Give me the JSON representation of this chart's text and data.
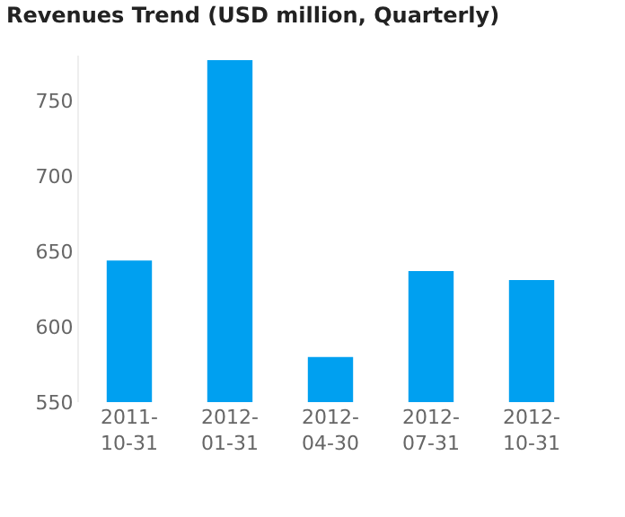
{
  "chart_data": {
    "type": "bar",
    "title": "Revenues Trend (USD million, Quarterly)",
    "categories": [
      "2011-10-31",
      "2012-01-31",
      "2012-04-30",
      "2012-07-31",
      "2012-10-31"
    ],
    "series": [
      {
        "color": "#00a0f0",
        "values": [
          644,
          777,
          580,
          637,
          631
        ]
      }
    ],
    "ylim": [
      550,
      780
    ],
    "yticks": [
      550,
      600,
      650,
      700,
      750
    ]
  }
}
